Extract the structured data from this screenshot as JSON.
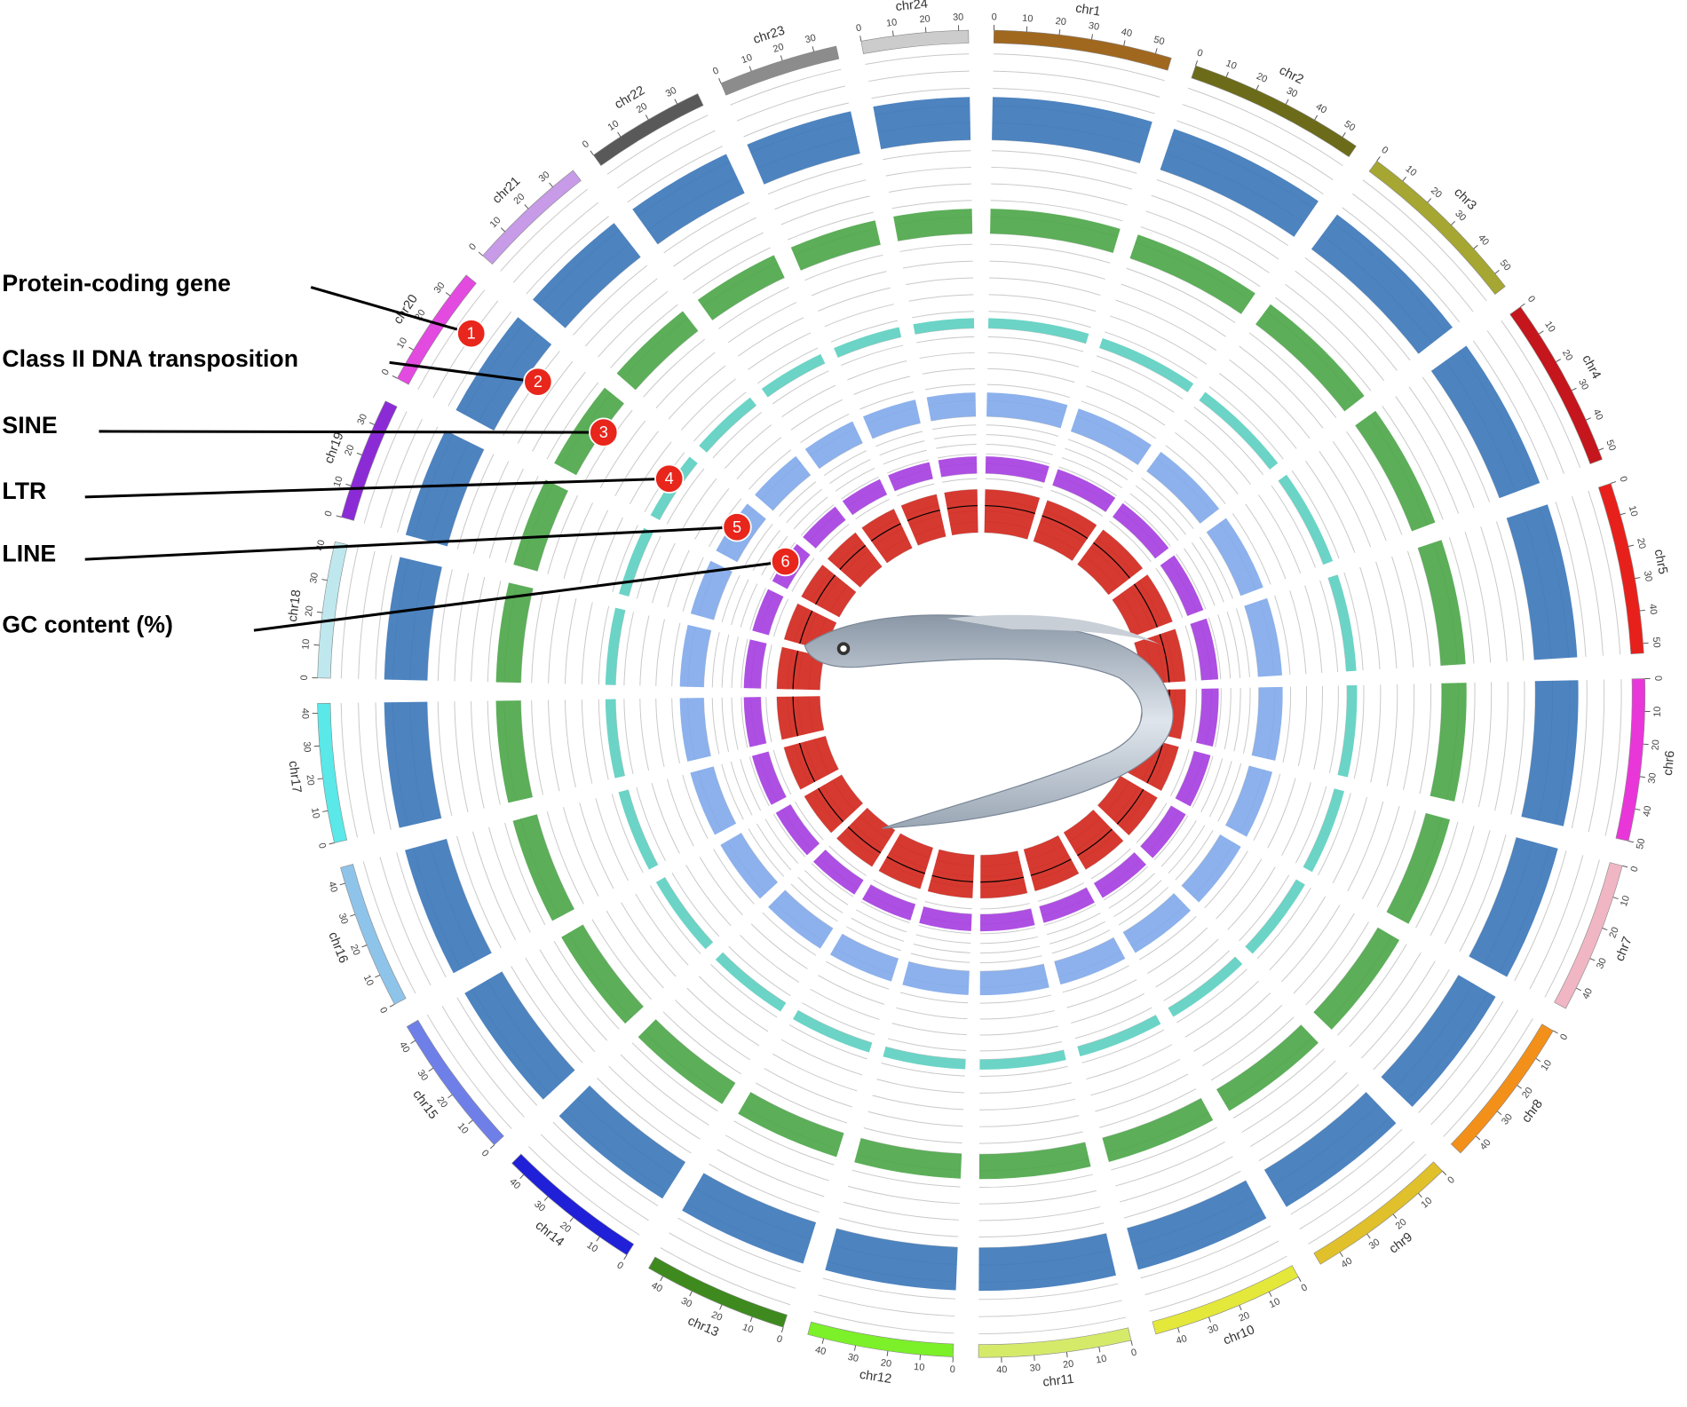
{
  "tracks": [
    {
      "label": "Protein-coding gene",
      "badge": "1",
      "color": "#3a75b8"
    },
    {
      "label": "Class II DNA transposition",
      "badge": "2",
      "color": "#4aa547"
    },
    {
      "label": "SINE",
      "badge": "3",
      "color": "#5bcfc0"
    },
    {
      "label": "LTR",
      "badge": "4",
      "color": "#7fa8ea"
    },
    {
      "label": "LINE",
      "badge": "5",
      "color": "#a53ce0"
    },
    {
      "label": "GC content (%)",
      "badge": "6",
      "color": "#d2231a"
    }
  ],
  "chromosomes": [
    {
      "name": "chr1",
      "color": "#a0671e",
      "length": 55,
      "ticks": [
        0,
        10,
        20,
        30,
        40,
        50
      ]
    },
    {
      "name": "chr2",
      "color": "#6b6b1a",
      "length": 55,
      "ticks": [
        0,
        10,
        20,
        30,
        40,
        50
      ]
    },
    {
      "name": "chr3",
      "color": "#a6a632",
      "length": 55,
      "ticks": [
        0,
        10,
        20,
        30,
        40,
        50
      ]
    },
    {
      "name": "chr4",
      "color": "#c4161c",
      "length": 53,
      "ticks": [
        0,
        10,
        20,
        30,
        40,
        50
      ]
    },
    {
      "name": "chr5",
      "color": "#e8201b",
      "length": 53,
      "ticks": [
        0,
        10,
        20,
        30,
        40,
        50
      ]
    },
    {
      "name": "chr6",
      "color": "#e936d8",
      "length": 50,
      "ticks": [
        0,
        10,
        20,
        30,
        40,
        50
      ]
    },
    {
      "name": "chr7",
      "color": "#f0b6c4",
      "length": 47,
      "ticks": [
        0,
        10,
        20,
        30,
        40
      ]
    },
    {
      "name": "chr8",
      "color": "#f39019",
      "length": 47,
      "ticks": [
        0,
        10,
        20,
        30,
        40
      ]
    },
    {
      "name": "chr9",
      "color": "#e0c02b",
      "length": 47,
      "ticks": [
        0,
        10,
        20,
        30,
        40
      ]
    },
    {
      "name": "chr10",
      "color": "#e4e83a",
      "length": 47,
      "ticks": [
        0,
        10,
        20,
        30,
        40
      ]
    },
    {
      "name": "chr11",
      "color": "#d6ea6a",
      "length": 47,
      "ticks": [
        0,
        10,
        20,
        30,
        40
      ]
    },
    {
      "name": "chr12",
      "color": "#7cf029",
      "length": 45,
      "ticks": [
        0,
        10,
        20,
        30,
        40
      ]
    },
    {
      "name": "chr13",
      "color": "#3e8a1e",
      "length": 45,
      "ticks": [
        0,
        10,
        20,
        30,
        40
      ]
    },
    {
      "name": "chr14",
      "color": "#2020d8",
      "length": 45,
      "ticks": [
        0,
        10,
        20,
        30,
        40
      ]
    },
    {
      "name": "chr15",
      "color": "#6f7fe8",
      "length": 45,
      "ticks": [
        0,
        10,
        20,
        30,
        40
      ]
    },
    {
      "name": "chr16",
      "color": "#8fc4ea",
      "length": 45,
      "ticks": [
        0,
        10,
        20,
        30,
        40
      ]
    },
    {
      "name": "chr17",
      "color": "#5ae8e8",
      "length": 43,
      "ticks": [
        0,
        10,
        20,
        30,
        40
      ]
    },
    {
      "name": "chr18",
      "color": "#bfe8ee",
      "length": 42,
      "ticks": [
        0,
        10,
        20,
        30,
        40
      ]
    },
    {
      "name": "chr19",
      "color": "#8b2bd6",
      "length": 38,
      "ticks": [
        0,
        10,
        20,
        30
      ]
    },
    {
      "name": "chr20",
      "color": "#e24ae0",
      "length": 38,
      "ticks": [
        0,
        10,
        20,
        30
      ]
    },
    {
      "name": "chr21",
      "color": "#c79be8",
      "length": 38,
      "ticks": [
        0,
        10,
        20,
        30
      ]
    },
    {
      "name": "chr22",
      "color": "#595959",
      "length": 37,
      "ticks": [
        0,
        10,
        20,
        30
      ]
    },
    {
      "name": "chr23",
      "color": "#8c8c8c",
      "length": 37,
      "ticks": [
        0,
        10,
        20,
        30
      ]
    },
    {
      "name": "chr24",
      "color": "#cccccc",
      "length": 33,
      "ticks": [
        0,
        10,
        20,
        30
      ]
    }
  ]
}
